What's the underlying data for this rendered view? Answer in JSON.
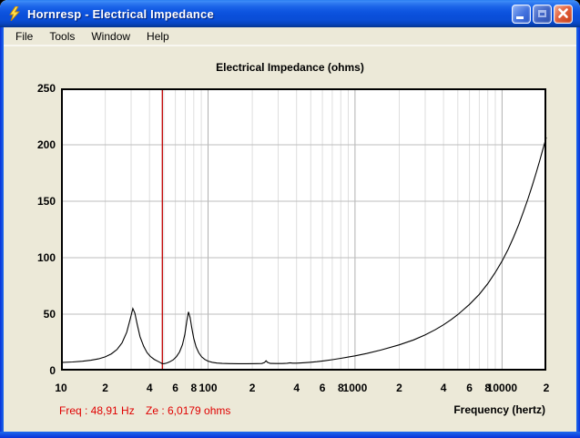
{
  "window": {
    "title": "Hornresp - Electrical Impedance",
    "icon": "lightning-bolt",
    "controls": {
      "minimize": "minimize",
      "maximize": "maximize",
      "close": "close"
    }
  },
  "menu": {
    "items": [
      "File",
      "Tools",
      "Window",
      "Help"
    ]
  },
  "status": {
    "freq": "Freq : 48,91 Hz",
    "ze": "Ze : 6,0179 ohms"
  },
  "chart_data": {
    "type": "line",
    "title": "Electrical Impedance (ohms)",
    "xlabel": "Frequency (hertz)",
    "ylabel": "",
    "x_scale": "log",
    "xlim": [
      10,
      20000
    ],
    "ylim": [
      0,
      250
    ],
    "grid": true,
    "legend_position": "none",
    "y_ticks": [
      0,
      50,
      100,
      150,
      200,
      250
    ],
    "x_ticks": [
      {
        "f": 10,
        "t": "10"
      },
      {
        "f": 20,
        "t": "2"
      },
      {
        "f": 40,
        "t": "4"
      },
      {
        "f": 60,
        "t": "6"
      },
      {
        "f": 80,
        "t": "8"
      },
      {
        "f": 100,
        "t": "100"
      },
      {
        "f": 200,
        "t": "2"
      },
      {
        "f": 400,
        "t": "4"
      },
      {
        "f": 600,
        "t": "6"
      },
      {
        "f": 800,
        "t": "8"
      },
      {
        "f": 1000,
        "t": "1000"
      },
      {
        "f": 2000,
        "t": "2"
      },
      {
        "f": 4000,
        "t": "4"
      },
      {
        "f": 6000,
        "t": "6"
      },
      {
        "f": 8000,
        "t": "8"
      },
      {
        "f": 10000,
        "t": "10000"
      },
      {
        "f": 20000,
        "t": "2"
      }
    ],
    "minor_grid_freqs": [
      20,
      30,
      40,
      50,
      60,
      70,
      80,
      90,
      200,
      300,
      400,
      500,
      600,
      700,
      800,
      900,
      2000,
      3000,
      4000,
      5000,
      6000,
      7000,
      8000,
      9000
    ],
    "major_grid_freqs": [
      100,
      1000,
      10000
    ],
    "cursor": {
      "freq": 48.91,
      "ze_ohms": 6.0179
    },
    "colors": {
      "curve": "#000000",
      "cursor": "#c00000",
      "minor_grid": "#dedede",
      "major_grid": "#b0b0b0",
      "h_grid": "#bdbdbd",
      "plot_bg": "#ffffff",
      "plot_border": "#000000",
      "window_bg": "#ece9d8",
      "status_text": "#e00000",
      "titlebar_blue": "#0a4fda"
    },
    "series": [
      {
        "name": "Electrical Impedance",
        "points": [
          [
            10,
            7.2
          ],
          [
            12,
            7.7
          ],
          [
            14,
            8.3
          ],
          [
            16,
            9.2
          ],
          [
            18,
            10.4
          ],
          [
            20,
            12.2
          ],
          [
            22,
            14.8
          ],
          [
            24,
            18.6
          ],
          [
            26,
            24.5
          ],
          [
            28,
            34
          ],
          [
            29.6,
            46
          ],
          [
            30.8,
            55
          ],
          [
            31.8,
            51
          ],
          [
            33,
            41
          ],
          [
            34.5,
            30
          ],
          [
            36.5,
            21.5
          ],
          [
            38.5,
            16
          ],
          [
            40.5,
            12.6
          ],
          [
            43,
            10
          ],
          [
            45.5,
            8.3
          ],
          [
            47.5,
            7
          ],
          [
            48.91,
            6.1
          ],
          [
            50.5,
            6.2
          ],
          [
            52.5,
            6.8
          ],
          [
            55,
            7.8
          ],
          [
            58,
            9.6
          ],
          [
            61,
            12.4
          ],
          [
            64,
            16.5
          ],
          [
            67,
            23
          ],
          [
            69.5,
            32
          ],
          [
            71.8,
            44
          ],
          [
            73.6,
            52
          ],
          [
            75.5,
            47
          ],
          [
            77.5,
            38
          ],
          [
            80,
            28.5
          ],
          [
            83,
            21
          ],
          [
            86.5,
            15.8
          ],
          [
            90.5,
            12.2
          ],
          [
            95,
            9.9
          ],
          [
            100,
            8.4
          ],
          [
            107,
            7.3
          ],
          [
            115,
            6.7
          ],
          [
            125,
            6.4
          ],
          [
            140,
            6.2
          ],
          [
            160,
            6.1
          ],
          [
            185,
            6.1
          ],
          [
            215,
            6.2
          ],
          [
            232,
            6.3
          ],
          [
            242,
            7.1
          ],
          [
            248,
            8.7
          ],
          [
            254,
            7.3
          ],
          [
            265,
            6.4
          ],
          [
            290,
            6.3
          ],
          [
            320,
            6.3
          ],
          [
            345,
            6.5
          ],
          [
            362,
            6.9
          ],
          [
            375,
            6.6
          ],
          [
            400,
            6.6
          ],
          [
            440,
            6.9
          ],
          [
            490,
            7.3
          ],
          [
            550,
            7.9
          ],
          [
            620,
            8.7
          ],
          [
            700,
            9.7
          ],
          [
            800,
            10.9
          ],
          [
            900,
            12
          ],
          [
            1000,
            13.1
          ],
          [
            1200,
            15.2
          ],
          [
            1500,
            18.2
          ],
          [
            2000,
            22.8
          ],
          [
            2500,
            27.2
          ],
          [
            3000,
            31.6
          ],
          [
            3500,
            36.1
          ],
          [
            4000,
            40.6
          ],
          [
            4500,
            45.1
          ],
          [
            5000,
            49.6
          ],
          [
            6000,
            58.6
          ],
          [
            7000,
            67.6
          ],
          [
            8000,
            77
          ],
          [
            9000,
            87
          ],
          [
            10000,
            97
          ],
          [
            11000,
            107.5
          ],
          [
            12000,
            118.5
          ],
          [
            13000,
            129.5
          ],
          [
            14000,
            141
          ],
          [
            15000,
            152
          ],
          [
            16000,
            163.5
          ],
          [
            17000,
            174.5
          ],
          [
            18000,
            185.5
          ],
          [
            19000,
            196.5
          ],
          [
            20000,
            206.5
          ]
        ]
      }
    ]
  }
}
